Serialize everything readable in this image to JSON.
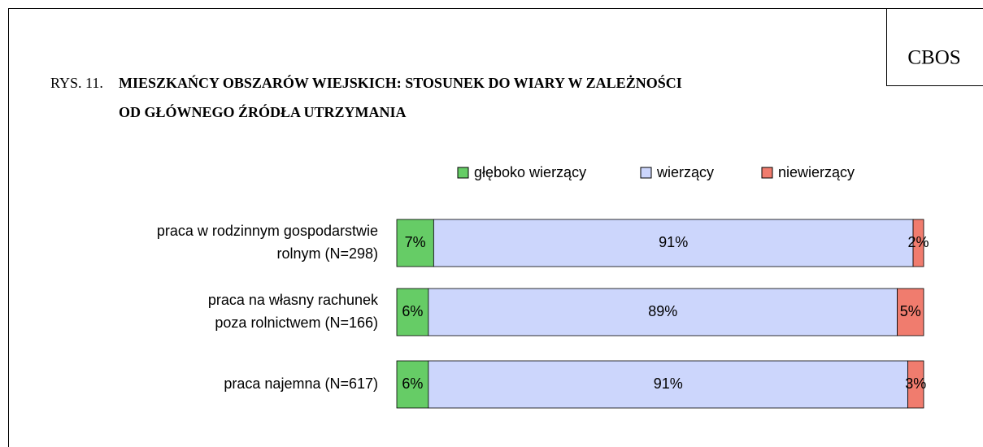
{
  "chart_data": {
    "type": "stacked_bar_horizontal",
    "source": "CBOS",
    "figure_label": "RYS. 11.",
    "title": [
      "MIESZKAŃCY OBSZARÓW WIEJSKICH: STOSUNEK DO WIARY W ZALEŻNOŚCI",
      "OD GŁÓWNEGO ŹRÓDŁA UTRZYMANIA"
    ],
    "categories": [
      [
        "praca w rodzinnym gospodarstwie",
        "rolnym  (N=298)"
      ],
      [
        "praca na własny rachunek",
        "poza rolnictwem (N=166)"
      ],
      [
        "praca najemna (N=617)"
      ]
    ],
    "xlim": [
      0,
      100
    ],
    "series": [
      {
        "name": "głęboko wierzący",
        "color": "#66cc66",
        "values": [
          7,
          6,
          6
        ],
        "value_labels": [
          "7%",
          "6%",
          "6%"
        ]
      },
      {
        "name": "wierzący",
        "color": "#ccd6fc",
        "values": [
          91,
          89,
          91
        ],
        "value_labels": [
          "91%",
          "89%",
          "91%"
        ]
      },
      {
        "name": "niewierzący",
        "color": "#f07c6e",
        "values": [
          2,
          5,
          3
        ],
        "value_labels": [
          "2%",
          "5%",
          "3%"
        ]
      }
    ],
    "legend": "top"
  }
}
